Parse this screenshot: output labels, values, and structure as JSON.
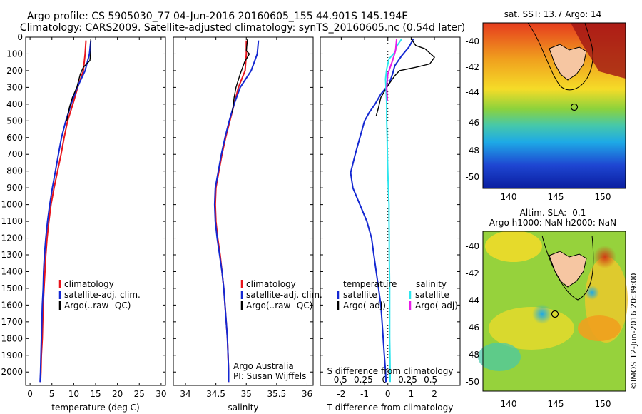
{
  "header": {
    "line1": "Argo profile: CS 5905030_77 04-Jun-2016 20160605_155 44.901S 145.194E",
    "line2": "Climatology: CARS2009. Satellite-adjusted climatology: synTS_20160605.nc (0.54d later)"
  },
  "colors": {
    "climatology": "#e8141c",
    "satellite": "#1428d2",
    "argo": "#000000",
    "satellite_diff": "#2ee6ee",
    "argo_sal_diff": "#e81ce8"
  },
  "chart_data": [
    {
      "type": "line",
      "panel": "temperature",
      "xlabel": "temperature (deg C)",
      "ylabel": "",
      "xlim": [
        -1,
        31
      ],
      "ylim": [
        2080,
        0
      ],
      "xticks": [
        0,
        5,
        10,
        15,
        20,
        25,
        30
      ],
      "yticks": [
        0,
        100,
        200,
        300,
        400,
        500,
        600,
        700,
        800,
        900,
        1000,
        1100,
        1200,
        1300,
        1400,
        1500,
        1600,
        1700,
        1800,
        1900,
        2000
      ],
      "legend": [
        "climatology",
        "satellite-adj. clim.",
        "Argo(..raw -QC)"
      ],
      "series": [
        {
          "name": "climatology",
          "points": [
            [
              12.8,
              20
            ],
            [
              12.6,
              100
            ],
            [
              12.2,
              200
            ],
            [
              10.9,
              300
            ],
            [
              9.8,
              400
            ],
            [
              8.6,
              500
            ],
            [
              7.8,
              600
            ],
            [
              7.1,
              700
            ],
            [
              6.3,
              800
            ],
            [
              5.5,
              900
            ],
            [
              4.8,
              1000
            ],
            [
              4.3,
              1100
            ],
            [
              3.9,
              1200
            ],
            [
              3.6,
              1300
            ],
            [
              3.4,
              1400
            ],
            [
              3.2,
              1500
            ],
            [
              3.0,
              1600
            ],
            [
              2.9,
              1700
            ],
            [
              2.8,
              1800
            ],
            [
              2.6,
              1900
            ],
            [
              2.5,
              2000
            ],
            [
              2.4,
              2060
            ]
          ]
        },
        {
          "name": "satellite-adj. clim.",
          "points": [
            [
              13.9,
              20
            ],
            [
              13.6,
              100
            ],
            [
              12.6,
              200
            ],
            [
              10.8,
              300
            ],
            [
              9.4,
              400
            ],
            [
              8.2,
              500
            ],
            [
              7.2,
              600
            ],
            [
              6.5,
              700
            ],
            [
              5.8,
              800
            ],
            [
              5.1,
              900
            ],
            [
              4.5,
              1000
            ],
            [
              4.0,
              1100
            ],
            [
              3.6,
              1200
            ],
            [
              3.3,
              1300
            ],
            [
              3.1,
              1400
            ],
            [
              3.0,
              1500
            ],
            [
              2.8,
              1600
            ],
            [
              2.7,
              1700
            ],
            [
              2.6,
              1800
            ],
            [
              2.5,
              1900
            ],
            [
              2.4,
              2000
            ],
            [
              2.3,
              2060
            ]
          ]
        },
        {
          "name": "Argo(..raw -QC)",
          "points": [
            [
              13.9,
              10
            ],
            [
              13.9,
              80
            ],
            [
              13.7,
              140
            ],
            [
              12.2,
              180
            ],
            [
              11.5,
              220
            ],
            [
              10.7,
              300
            ],
            [
              9.7,
              360
            ],
            [
              9.0,
              420
            ],
            [
              8.4,
              500
            ]
          ]
        }
      ]
    },
    {
      "type": "line",
      "panel": "salinity",
      "xlabel": "salinity",
      "ylabel": "",
      "xlim": [
        33.8,
        36.1
      ],
      "ylim": [
        2080,
        0
      ],
      "xticks": [
        34,
        34.5,
        35,
        35.5,
        36
      ],
      "legend": [
        "climatology",
        "satellite-adj. clim.",
        "Argo(..raw -QC)"
      ],
      "annotations": [
        "Argo Australia",
        "PI: Susan Wijffels"
      ],
      "series": [
        {
          "name": "climatology",
          "points": [
            [
              35.0,
              20
            ],
            [
              35.0,
              100
            ],
            [
              34.98,
              200
            ],
            [
              34.87,
              300
            ],
            [
              34.8,
              400
            ],
            [
              34.73,
              500
            ],
            [
              34.66,
              600
            ],
            [
              34.6,
              700
            ],
            [
              34.55,
              800
            ],
            [
              34.5,
              900
            ],
            [
              34.49,
              1000
            ],
            [
              34.5,
              1100
            ],
            [
              34.53,
              1200
            ],
            [
              34.57,
              1300
            ],
            [
              34.6,
              1400
            ],
            [
              34.63,
              1500
            ],
            [
              34.65,
              1600
            ],
            [
              34.67,
              1700
            ],
            [
              34.69,
              1800
            ],
            [
              34.7,
              1900
            ],
            [
              34.71,
              2000
            ],
            [
              34.71,
              2060
            ]
          ]
        },
        {
          "name": "satellite-adj. clim.",
          "points": [
            [
              35.2,
              20
            ],
            [
              35.18,
              100
            ],
            [
              35.08,
              200
            ],
            [
              34.9,
              300
            ],
            [
              34.8,
              400
            ],
            [
              34.72,
              500
            ],
            [
              34.65,
              600
            ],
            [
              34.59,
              700
            ],
            [
              34.54,
              800
            ],
            [
              34.49,
              900
            ],
            [
              34.48,
              1000
            ],
            [
              34.49,
              1100
            ],
            [
              34.52,
              1200
            ],
            [
              34.56,
              1300
            ],
            [
              34.6,
              1400
            ],
            [
              34.63,
              1500
            ],
            [
              34.65,
              1600
            ],
            [
              34.67,
              1700
            ],
            [
              34.69,
              1800
            ],
            [
              34.7,
              1900
            ],
            [
              34.71,
              2000
            ],
            [
              34.71,
              2060
            ]
          ]
        },
        {
          "name": "Argo(..raw -QC)",
          "points": [
            [
              35.02,
              10
            ],
            [
              35.0,
              80
            ],
            [
              35.05,
              100
            ],
            [
              34.97,
              150
            ],
            [
              34.9,
              220
            ],
            [
              34.83,
              300
            ],
            [
              34.8,
              360
            ],
            [
              34.77,
              450
            ]
          ]
        }
      ]
    },
    {
      "type": "line",
      "panel": "difference",
      "xlabel": "T difference from climatology",
      "xlabel_top": "S difference from climatology",
      "xlim": [
        -2.9,
        3.1
      ],
      "ylim": [
        2080,
        0
      ],
      "xticks": [
        -2,
        -1,
        0,
        1,
        2
      ],
      "xticks_s": [
        "-0.5",
        "-0.25",
        "0",
        "0.25",
        "0.5"
      ],
      "legend_headers": [
        "temperature",
        "salinity"
      ],
      "legend": [
        "satellite",
        "Argo(-adj)",
        "satellite",
        "Argo(-adj)"
      ],
      "series": [
        {
          "name": "temperature satellite",
          "points": [
            [
              1.1,
              10
            ],
            [
              0.9,
              60
            ],
            [
              0.6,
              110
            ],
            [
              0.3,
              170
            ],
            [
              0.2,
              220
            ],
            [
              0.05,
              280
            ],
            [
              -0.3,
              340
            ],
            [
              -0.55,
              400
            ],
            [
              -0.8,
              450
            ],
            [
              -1.0,
              500
            ],
            [
              -1.2,
              600
            ],
            [
              -1.4,
              700
            ],
            [
              -1.6,
              810
            ],
            [
              -1.5,
              900
            ],
            [
              -1.2,
              1000
            ],
            [
              -0.9,
              1100
            ],
            [
              -0.7,
              1200
            ],
            [
              -0.6,
              1300
            ],
            [
              -0.5,
              1400
            ],
            [
              -0.4,
              1500
            ],
            [
              -0.3,
              1600
            ],
            [
              -0.25,
              1700
            ],
            [
              -0.2,
              1800
            ],
            [
              -0.15,
              1900
            ],
            [
              -0.1,
              2000
            ],
            [
              -0.08,
              2060
            ]
          ]
        },
        {
          "name": "temperature Argo(-adj)",
          "points": [
            [
              1.0,
              10
            ],
            [
              1.2,
              50
            ],
            [
              1.6,
              70
            ],
            [
              2.0,
              120
            ],
            [
              1.8,
              160
            ],
            [
              1.2,
              180
            ],
            [
              0.5,
              200
            ],
            [
              0.3,
              230
            ],
            [
              0.0,
              290
            ],
            [
              -0.3,
              360
            ],
            [
              -0.4,
              420
            ],
            [
              -0.5,
              470
            ]
          ]
        },
        {
          "name": "salinity satellite",
          "points": [
            [
              0.6,
              10
            ],
            [
              0.4,
              50
            ],
            [
              0.3,
              90
            ],
            [
              0.05,
              130
            ],
            [
              -0.05,
              190
            ],
            [
              -0.1,
              250
            ],
            [
              -0.08,
              300
            ],
            [
              -0.05,
              400
            ],
            [
              -0.05,
              500
            ],
            [
              -0.03,
              600
            ],
            [
              -0.02,
              700
            ],
            [
              0.0,
              800
            ],
            [
              0.02,
              900
            ],
            [
              0.05,
              1000
            ],
            [
              0.05,
              1100
            ],
            [
              0.06,
              1200
            ],
            [
              0.06,
              1300
            ],
            [
              0.07,
              1400
            ],
            [
              0.08,
              1500
            ],
            [
              0.08,
              1600
            ],
            [
              0.08,
              1700
            ],
            [
              0.08,
              1800
            ],
            [
              0.09,
              1900
            ],
            [
              0.1,
              2000
            ],
            [
              0.1,
              2060
            ]
          ]
        },
        {
          "name": "salinity Argo(-adj)",
          "points": [
            [
              0.38,
              10
            ],
            [
              0.33,
              80
            ],
            [
              0.2,
              140
            ],
            [
              0.0,
              220
            ],
            [
              -0.05,
              300
            ],
            [
              -0.02,
              380
            ]
          ]
        }
      ]
    }
  ],
  "maps": {
    "sst": {
      "title": "sat. SST: 13.7 Argo: 14",
      "yticks": [
        "-40",
        "-42",
        "-44",
        "-46",
        "-48",
        "-50"
      ],
      "xticks": [
        "140",
        "145",
        "150"
      ]
    },
    "sla": {
      "title1": "Altim. SLA: -0.1",
      "title2": "Argo h1000: NaN h2000: NaN",
      "yticks": [
        "-40",
        "-42",
        "-44",
        "-46",
        "-48",
        "-50"
      ],
      "xticks": [
        "140",
        "145",
        "150"
      ]
    }
  },
  "footer_stamp": "©IMOS 12-Jun-2016 20:39:00"
}
